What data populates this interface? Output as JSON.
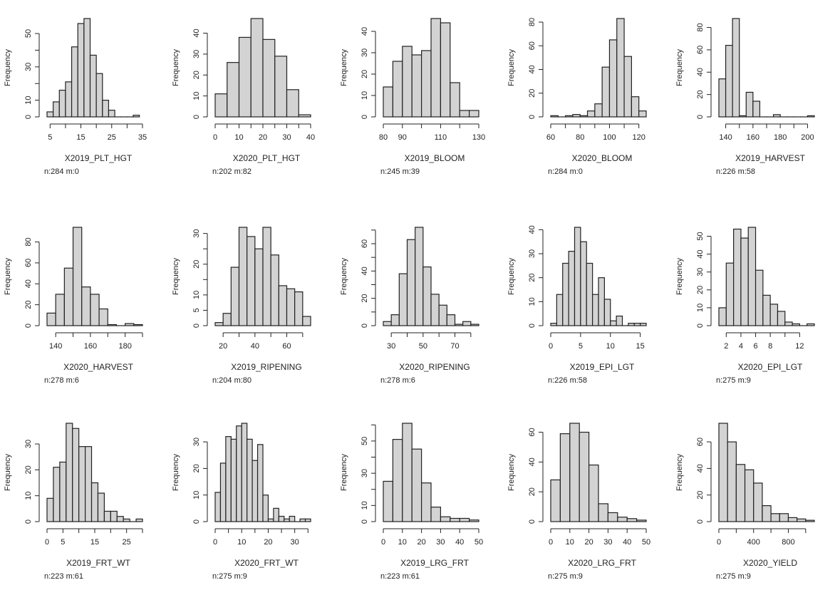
{
  "chart_data": [
    {
      "type": "bar",
      "title": "",
      "xlabel": "X2019_PLT_HGT",
      "ylabel": "Frequency",
      "note": "n:284 m:0",
      "x_start": 4,
      "bin_width": 2,
      "values": [
        3,
        9,
        16,
        21,
        42,
        56,
        59,
        37,
        26,
        10,
        4,
        0,
        0,
        0,
        1
      ],
      "xlim": [
        5,
        35
      ],
      "xticks": [
        5,
        10,
        15,
        20,
        25,
        30,
        35
      ],
      "xtick_labels": [
        5,
        15,
        25,
        35
      ],
      "yticks": [
        0,
        10,
        20,
        30,
        40,
        50
      ],
      "ytick_labels": [
        0,
        10,
        30,
        50
      ]
    },
    {
      "type": "bar",
      "title": "",
      "xlabel": "X2020_PLT_HGT",
      "ylabel": "Frequency",
      "note": "n:202 m:82",
      "x_start": 0,
      "bin_width": 5,
      "values": [
        11,
        26,
        38,
        47,
        37,
        29,
        13,
        1
      ],
      "xlim": [
        0,
        40
      ],
      "xticks": [
        0,
        5,
        10,
        15,
        20,
        25,
        30,
        35,
        40
      ],
      "xtick_labels": [
        0,
        10,
        20,
        30,
        40
      ],
      "yticks": [
        0,
        10,
        20,
        30,
        40
      ],
      "ytick_labels": [
        0,
        10,
        20,
        30,
        40
      ]
    },
    {
      "type": "bar",
      "title": "",
      "xlabel": "X2019_BLOOM",
      "ylabel": "Frequency",
      "note": "n:245 m:39",
      "x_start": 80,
      "bin_width": 5,
      "values": [
        14,
        26,
        33,
        29,
        31,
        46,
        44,
        16,
        3,
        3
      ],
      "xlim": [
        80,
        130
      ],
      "xticks": [
        80,
        90,
        100,
        110,
        120,
        130
      ],
      "xtick_labels": [
        80,
        90,
        110,
        130
      ],
      "yticks": [
        0,
        10,
        20,
        30,
        40
      ],
      "ytick_labels": [
        0,
        10,
        20,
        30,
        40
      ]
    },
    {
      "type": "bar",
      "title": "",
      "xlabel": "X2020_BLOOM",
      "ylabel": "Frequency",
      "note": "n:284 m:0",
      "x_start": 60,
      "bin_width": 5,
      "values": [
        1,
        0,
        1,
        2,
        1,
        5,
        11,
        42,
        65,
        83,
        51,
        17,
        5
      ],
      "xlim": [
        60,
        120
      ],
      "xticks": [
        60,
        70,
        80,
        90,
        100,
        110,
        120
      ],
      "xtick_labels": [
        60,
        80,
        100,
        120
      ],
      "yticks": [
        0,
        20,
        40,
        60,
        80
      ],
      "ytick_labels": [
        0,
        20,
        40,
        60,
        80
      ]
    },
    {
      "type": "bar",
      "title": "",
      "xlabel": "X2019_HARVEST",
      "ylabel": "Frequency",
      "note": "n:226 m:58",
      "x_start": 135,
      "bin_width": 5,
      "values": [
        34,
        64,
        88,
        1,
        22,
        14,
        0,
        0,
        2,
        0,
        0,
        0,
        0,
        1
      ],
      "xlim": [
        140,
        200
      ],
      "xticks": [
        140,
        150,
        160,
        170,
        180,
        190,
        200
      ],
      "xtick_labels": [
        140,
        160,
        180,
        200
      ],
      "yticks": [
        0,
        20,
        40,
        60,
        80
      ],
      "ytick_labels": [
        0,
        20,
        40,
        60,
        80
      ]
    },
    {
      "type": "bar",
      "title": "",
      "xlabel": "X2020_HARVEST",
      "ylabel": "Frequency",
      "note": "n:278 m:6",
      "x_start": 135,
      "bin_width": 5,
      "values": [
        12,
        30,
        55,
        94,
        37,
        30,
        16,
        1,
        0,
        2,
        1
      ],
      "xlim": [
        140,
        190
      ],
      "xticks": [
        140,
        150,
        160,
        170,
        180,
        190
      ],
      "xtick_labels": [
        140,
        160,
        180
      ],
      "yticks": [
        0,
        20,
        40,
        60,
        80
      ],
      "ytick_labels": [
        0,
        20,
        40,
        60,
        80
      ]
    },
    {
      "type": "bar",
      "title": "",
      "xlabel": "X2019_RIPENING",
      "ylabel": "Frequency",
      "note": "n:204 m:80",
      "x_start": 15,
      "bin_width": 5,
      "values": [
        1,
        4,
        19,
        32,
        29,
        25,
        32,
        23,
        13,
        12,
        11,
        3
      ],
      "xlim": [
        20,
        70
      ],
      "xticks": [
        20,
        30,
        40,
        50,
        60,
        70
      ],
      "xtick_labels": [
        20,
        40,
        60
      ],
      "yticks": [
        0,
        5,
        10,
        15,
        20,
        25,
        30
      ],
      "ytick_labels": [
        0,
        5,
        10,
        20,
        30
      ]
    },
    {
      "type": "bar",
      "title": "",
      "xlabel": "X2020_RIPENING",
      "ylabel": "Frequency",
      "note": "n:278 m:6",
      "x_start": 25,
      "bin_width": 5,
      "values": [
        3,
        8,
        38,
        63,
        72,
        43,
        23,
        15,
        8,
        1,
        3,
        1
      ],
      "xlim": [
        30,
        80
      ],
      "xticks": [
        30,
        40,
        50,
        60,
        70,
        80
      ],
      "xtick_labels": [
        30,
        50,
        70
      ],
      "yticks": [
        0,
        10,
        20,
        30,
        40,
        50,
        60,
        70
      ],
      "ytick_labels": [
        0,
        20,
        40,
        60
      ]
    },
    {
      "type": "bar",
      "title": "",
      "xlabel": "X2019_EPI_LGT",
      "ylabel": "Frequency",
      "note": "n:226 m:58",
      "x_start": 0,
      "bin_width": 1,
      "values": [
        1,
        13,
        26,
        31,
        41,
        35,
        26,
        13,
        20,
        11,
        2,
        4,
        0,
        1,
        1,
        1
      ],
      "xlim": [
        0,
        15
      ],
      "xticks": [
        0,
        5,
        10,
        15
      ],
      "xtick_labels": [
        0,
        5,
        10,
        15
      ],
      "yticks": [
        0,
        10,
        20,
        30,
        40
      ],
      "ytick_labels": [
        0,
        10,
        20,
        30,
        40
      ]
    },
    {
      "type": "bar",
      "title": "",
      "xlabel": "X2020_EPI_LGT",
      "ylabel": "Frequency",
      "note": "n:275 m:9",
      "x_start": 1,
      "bin_width": 1,
      "values": [
        10,
        35,
        54,
        49,
        55,
        31,
        17,
        12,
        8,
        2,
        1,
        0,
        1
      ],
      "xlim": [
        2,
        12
      ],
      "xticks": [
        2,
        4,
        6,
        8,
        10,
        12
      ],
      "xtick_labels": [
        2,
        4,
        6,
        8,
        12
      ],
      "yticks": [
        0,
        10,
        20,
        30,
        40,
        50
      ],
      "ytick_labels": [
        0,
        10,
        20,
        30,
        40,
        50
      ]
    },
    {
      "type": "bar",
      "title": "",
      "xlabel": "X2019_FRT_WT",
      "ylabel": "Frequency",
      "note": "n:223 m:61",
      "x_start": 0,
      "bin_width": 2,
      "values": [
        9,
        21,
        23,
        38,
        36,
        29,
        29,
        15,
        11,
        4,
        4,
        2,
        1,
        0,
        1
      ],
      "xlim": [
        0,
        30
      ],
      "xticks": [
        0,
        5,
        10,
        15,
        20,
        25,
        30
      ],
      "xtick_labels": [
        0,
        5,
        15,
        25
      ],
      "yticks": [
        0,
        10,
        20,
        30
      ],
      "ytick_labels": [
        0,
        10,
        20,
        30
      ]
    },
    {
      "type": "bar",
      "title": "",
      "xlabel": "X2020_FRT_WT",
      "ylabel": "Frequency",
      "note": "n:275 m:9",
      "x_start": 0,
      "bin_width": 2,
      "values": [
        11,
        22,
        32,
        31,
        36,
        37,
        31,
        23,
        29,
        10,
        1,
        5,
        2,
        1,
        2,
        0,
        1,
        1
      ],
      "xlim": [
        0,
        35
      ],
      "xticks": [
        0,
        5,
        10,
        15,
        20,
        25,
        30,
        35
      ],
      "xtick_labels": [
        0,
        10,
        20,
        30
      ],
      "yticks": [
        0,
        10,
        20,
        30
      ],
      "ytick_labels": [
        0,
        10,
        20,
        30
      ]
    },
    {
      "type": "bar",
      "title": "",
      "xlabel": "X2019_LRG_FRT",
      "ylabel": "Frequency",
      "note": "n:223 m:61",
      "x_start": 0,
      "bin_width": 5,
      "values": [
        25,
        51,
        61,
        45,
        24,
        9,
        3,
        2,
        2,
        1
      ],
      "xlim": [
        0,
        50
      ],
      "xticks": [
        0,
        10,
        20,
        30,
        40,
        50
      ],
      "xtick_labels": [
        0,
        10,
        20,
        30,
        40,
        50
      ],
      "yticks": [
        0,
        10,
        20,
        30,
        40,
        50,
        60
      ],
      "ytick_labels": [
        0,
        10,
        30,
        50
      ]
    },
    {
      "type": "bar",
      "title": "",
      "xlabel": "X2020_LRG_FRT",
      "ylabel": "Frequency",
      "note": "n:275 m:9",
      "x_start": 0,
      "bin_width": 5,
      "values": [
        28,
        59,
        66,
        60,
        38,
        12,
        6,
        3,
        2,
        1
      ],
      "xlim": [
        0,
        50
      ],
      "xticks": [
        0,
        10,
        20,
        30,
        40,
        50
      ],
      "xtick_labels": [
        0,
        10,
        20,
        30,
        40,
        50
      ],
      "yticks": [
        0,
        20,
        40,
        60
      ],
      "ytick_labels": [
        0,
        20,
        40,
        60
      ]
    },
    {
      "type": "bar",
      "title": "",
      "xlabel": "X2020_YIELD",
      "ylabel": "Frequency",
      "note": "n:275 m:9",
      "x_start": 0,
      "bin_width": 100,
      "values": [
        74,
        60,
        43,
        39,
        29,
        12,
        6,
        6,
        3,
        2,
        1
      ],
      "xlim": [
        0,
        1000
      ],
      "xticks": [
        0,
        200,
        400,
        600,
        800,
        1000
      ],
      "xtick_labels": [
        0,
        400,
        800
      ],
      "yticks": [
        0,
        20,
        40,
        60
      ],
      "ytick_labels": [
        0,
        20,
        40,
        60
      ]
    }
  ],
  "colors": {
    "bar_fill": "#d3d3d3",
    "bar_stroke": "#222222",
    "text": "#222222"
  }
}
